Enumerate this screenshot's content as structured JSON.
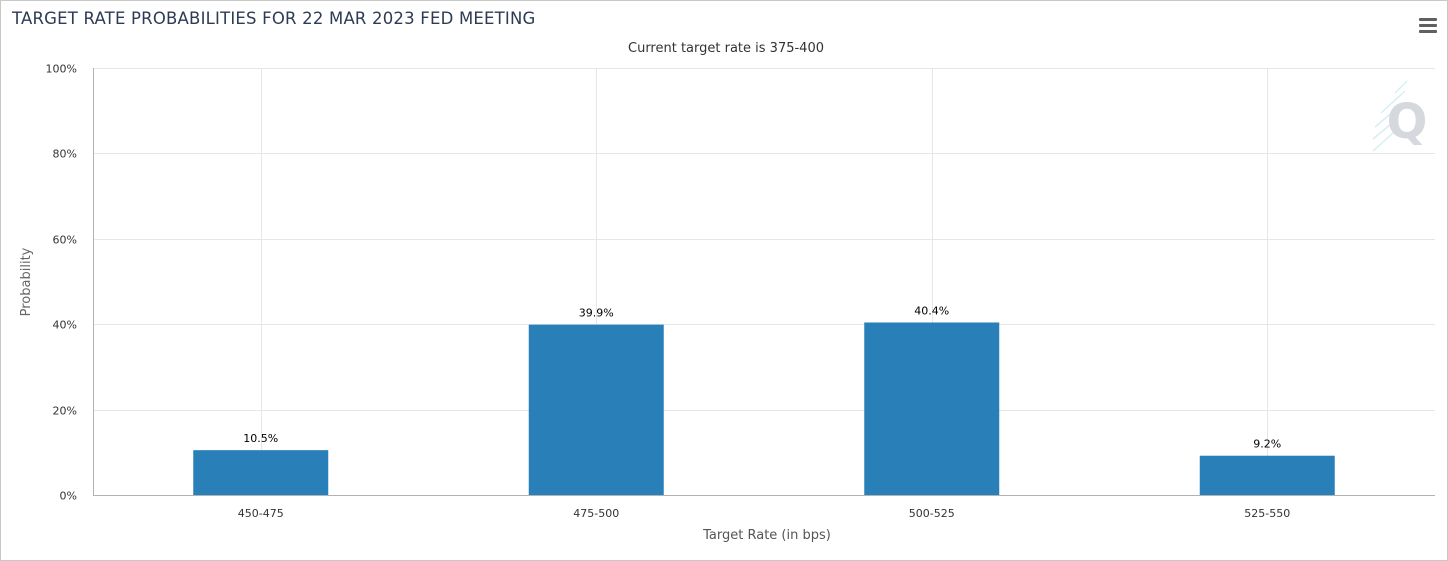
{
  "header": {
    "title": "TARGET RATE PROBABILITIES FOR 22 MAR 2023 FED MEETING",
    "menu_icon": "hamburger-menu-icon"
  },
  "watermark": {
    "text": "Q"
  },
  "chart_data": {
    "type": "bar",
    "title": "TARGET RATE PROBABILITIES FOR 22 MAR 2023 FED MEETING",
    "subtitle": "Current target rate is 375-400",
    "xlabel": "Target Rate (in bps)",
    "ylabel": "Probability",
    "categories": [
      "450-475",
      "475-500",
      "500-525",
      "525-550"
    ],
    "values": [
      10.5,
      39.9,
      40.4,
      9.2
    ],
    "data_labels": [
      "10.5%",
      "39.9%",
      "40.4%",
      "9.2%"
    ],
    "ylim": [
      0,
      100
    ],
    "yticks": [
      0,
      20,
      40,
      60,
      80,
      100
    ],
    "ytick_labels": [
      "0%",
      "20%",
      "40%",
      "60%",
      "80%",
      "100%"
    ],
    "grid": true,
    "bar_color": "#2980b9",
    "grid_color": "#e6e6e6",
    "axis_color": "#b3b3b3"
  }
}
